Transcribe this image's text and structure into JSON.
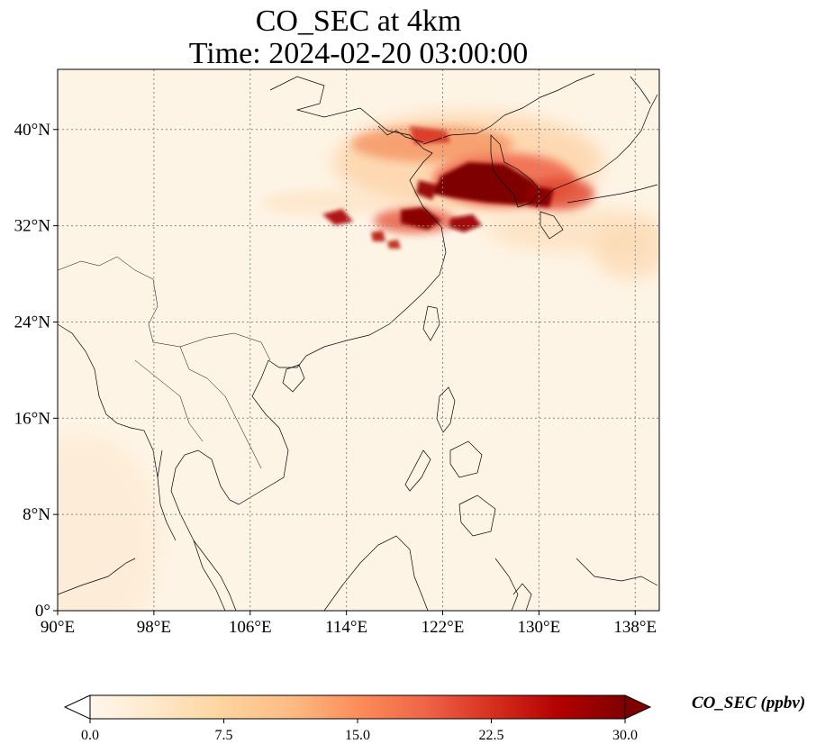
{
  "title": {
    "line1": "CO_SEC at 4km",
    "line2": "Time: 2024-02-20 03:00:00"
  },
  "map": {
    "lon_range": [
      90,
      140
    ],
    "lat_range": [
      0,
      45
    ],
    "lon_ticks": [
      "90°E",
      "98°E",
      "106°E",
      "114°E",
      "122°E",
      "130°E",
      "138°E"
    ],
    "lat_ticks": [
      "0°",
      "8°N",
      "16°N",
      "24°N",
      "32°N",
      "40°N"
    ],
    "gridlines": "dotted"
  },
  "colorbar": {
    "title": "CO_SEC (ppbv)",
    "ticks": [
      "0.0",
      "7.5",
      "15.0",
      "22.5",
      "30.0"
    ],
    "range": [
      0,
      30
    ],
    "extend": "both",
    "colormap": "OrRd",
    "colors": [
      "#fff7ec",
      "#fee8c8",
      "#fdd49e",
      "#fdbb84",
      "#fc8d59",
      "#ef6548",
      "#d7301f",
      "#b30000",
      "#7f0000"
    ]
  }
}
